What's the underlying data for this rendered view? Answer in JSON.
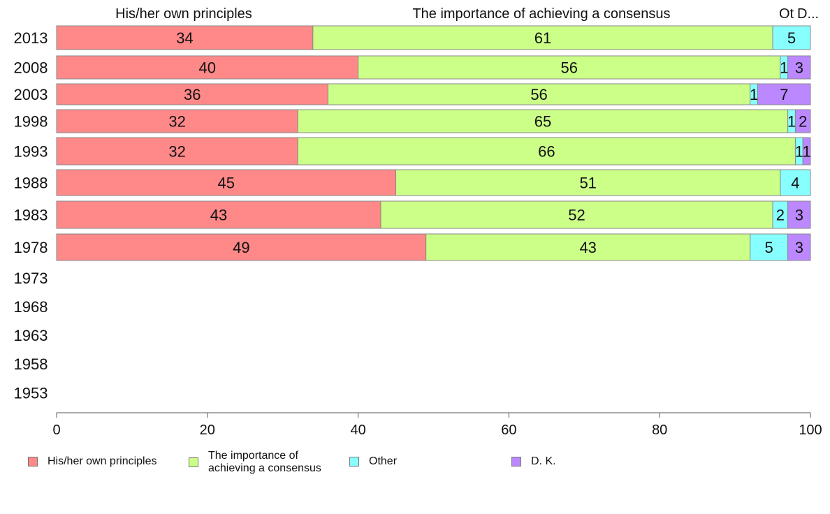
{
  "chart_data": {
    "type": "bar",
    "orientation": "horizontal",
    "stacked": true,
    "categories": [
      "2013",
      "2008",
      "2003",
      "1998",
      "1993",
      "1988",
      "1983",
      "1978",
      "1973",
      "1968",
      "1963",
      "1958",
      "1953"
    ],
    "series": [
      {
        "name": "His/her own principles",
        "color": "#ff8888",
        "values": [
          34,
          40,
          36,
          32,
          32,
          45,
          43,
          49,
          null,
          null,
          null,
          null,
          null
        ]
      },
      {
        "name": "The importance of achieving a consensus",
        "color": "#ccff88",
        "values": [
          61,
          56,
          56,
          65,
          66,
          51,
          52,
          43,
          null,
          null,
          null,
          null,
          null
        ]
      },
      {
        "name": "Other",
        "color": "#88ffff",
        "values": [
          5,
          1,
          1,
          1,
          1,
          4,
          2,
          5,
          null,
          null,
          null,
          null,
          null
        ]
      },
      {
        "name": "D. K.",
        "color": "#bb88ff",
        "values": [
          0,
          3,
          7,
          2,
          1,
          0,
          3,
          3,
          null,
          null,
          null,
          null,
          null
        ]
      }
    ],
    "top_labels": [
      "His/her own principles",
      "The importance of achieving a consensus",
      "Ot",
      "D..."
    ],
    "xlim": [
      0,
      100
    ],
    "xticks": [
      0,
      20,
      40,
      60,
      80,
      100
    ],
    "grid": false,
    "legend_position": "bottom",
    "legend_labels": [
      "His/her own principles",
      "The importance of\nachieving a consensus",
      "Other",
      "D. K."
    ]
  }
}
